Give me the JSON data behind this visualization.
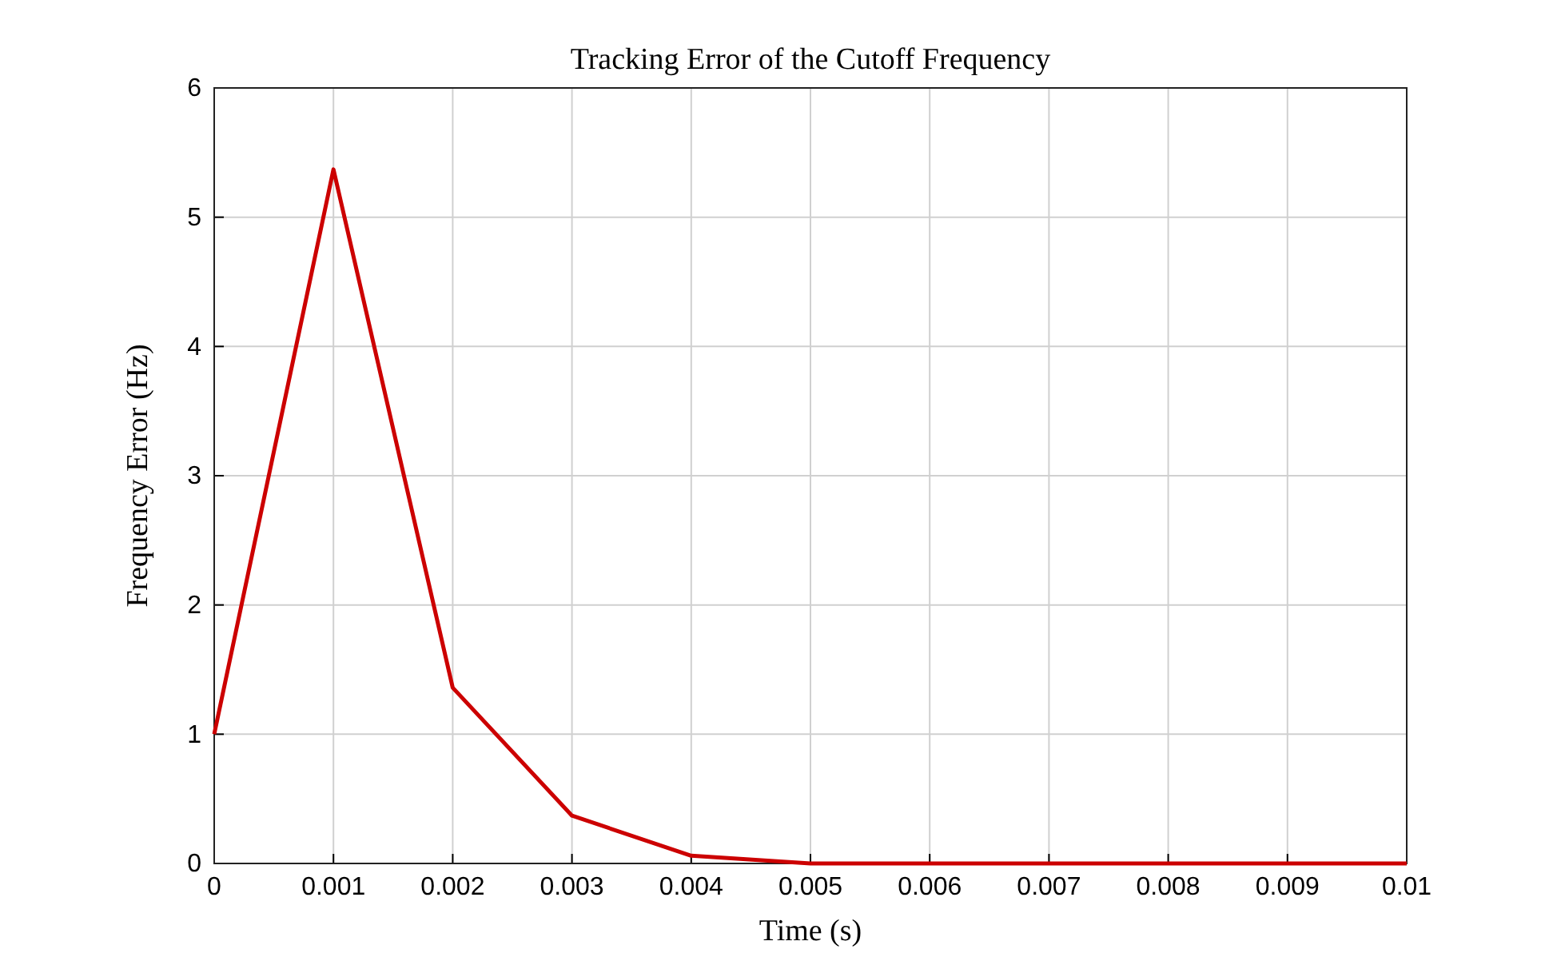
{
  "chart_data": {
    "type": "line",
    "title": "Tracking Error of the Cutoff Frequency",
    "xlabel": "Time (s)",
    "ylabel": "Frequency Error (Hz)",
    "x": [
      0,
      0.001,
      0.002,
      0.003,
      0.004,
      0.005,
      0.006,
      0.007,
      0.008,
      0.009,
      0.01
    ],
    "series": [
      {
        "color": "#cc0000",
        "values": [
          1.0,
          5.37,
          1.36,
          0.37,
          0.06,
          0,
          0,
          0,
          0,
          0,
          0
        ]
      }
    ],
    "xlim": [
      0,
      0.01
    ],
    "xticks": [
      0,
      0.001,
      0.002,
      0.003,
      0.004,
      0.005,
      0.006,
      0.007,
      0.008,
      0.009,
      0.01
    ],
    "ylim": [
      0,
      6
    ],
    "yticks": [
      0,
      1,
      2,
      3,
      4,
      5,
      6
    ],
    "grid": true,
    "marker": "none",
    "line_style": "solid"
  }
}
